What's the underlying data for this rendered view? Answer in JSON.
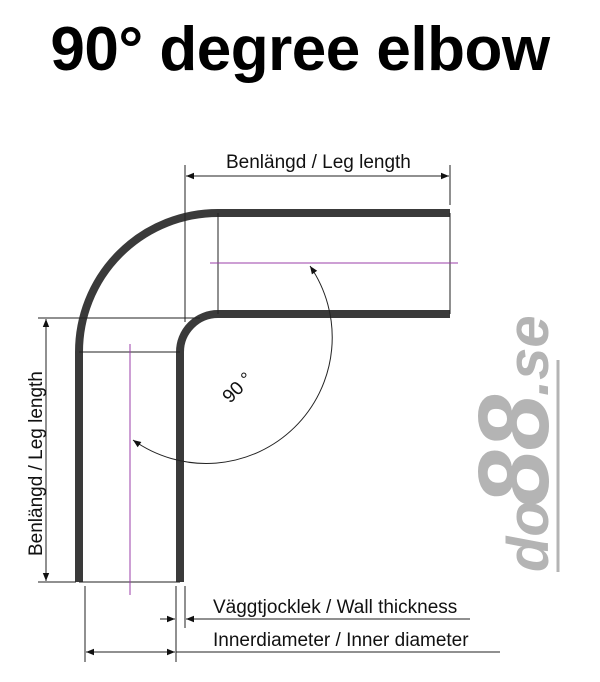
{
  "title": "90° degree elbow",
  "labels": {
    "leg_length_top": "Benlängd / Leg length",
    "leg_length_left": "Benlängd / Leg length",
    "angle": "90 °",
    "wall_thickness": "Väggtjocklek / Wall thickness",
    "inner_diameter": "Innerdiameter / Inner diameter"
  },
  "logo": {
    "text_do": "do",
    "text_88": "88",
    "text_se": ".se"
  },
  "colors": {
    "pipe_wall": "#3a3a3a",
    "centerline": "#9b3fa8",
    "logo": "#b4b4b4"
  }
}
